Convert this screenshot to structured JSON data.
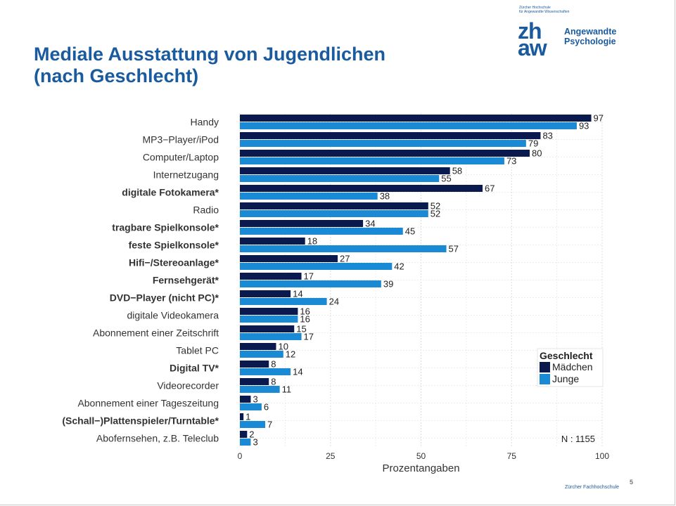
{
  "slide": {
    "title_line1": "Mediale Ausstattung von Jugendlichen",
    "title_line2": "(nach Geschlecht)",
    "logo_small_line1": "Zürcher Hochschule",
    "logo_small_line2": "für Angewandte Wissenschaften",
    "logo_mark_top": "zh",
    "logo_mark_bottom": "aw",
    "logo_text_line1": "Angewandte",
    "logo_text_line2": "Psychologie",
    "footer": "Zürcher Fachhochschule",
    "page_number": "5"
  },
  "colors": {
    "maedchen": "#0a1a4e",
    "junge": "#1a8ad4",
    "grid": "#dedede",
    "label": "#333333"
  },
  "chart_data": {
    "type": "bar",
    "orientation": "horizontal",
    "categories": [
      "Handy",
      "MP3−Player/iPod",
      "Computer/Laptop",
      "Internetzugang",
      "digitale Fotokamera*",
      "Radio",
      "tragbare Spielkonsole*",
      "feste Spielkonsole*",
      "Hifi−/Stereoanlage*",
      "Fernsehgerät*",
      "DVD−Player (nicht PC)*",
      "digitale Videokamera",
      "Abonnement einer Zeitschrift",
      "Tablet PC",
      "Digital TV*",
      "Videorecorder",
      "Abonnement einer Tageszeitung",
      "(Schall−)Plattenspieler/Turntable*",
      "Abofernsehen, z.B. Teleclub"
    ],
    "bold_categories": [
      false,
      false,
      false,
      false,
      true,
      false,
      true,
      true,
      true,
      true,
      true,
      false,
      false,
      false,
      true,
      false,
      false,
      true,
      false
    ],
    "series": [
      {
        "name": "Mädchen",
        "values": [
          97,
          83,
          80,
          58,
          67,
          52,
          34,
          18,
          27,
          17,
          14,
          16,
          15,
          10,
          8,
          8,
          3,
          1,
          2
        ]
      },
      {
        "name": "Junge",
        "values": [
          93,
          79,
          73,
          55,
          38,
          52,
          45,
          57,
          42,
          39,
          24,
          16,
          17,
          12,
          14,
          11,
          6,
          7,
          3
        ]
      }
    ],
    "xlabel": "Prozentangaben",
    "xlim": [
      0,
      100
    ],
    "xticks": [
      0,
      25,
      50,
      75,
      100
    ],
    "legend_title": "Geschlecht",
    "legend_position": "right",
    "annotation": "N : 1155",
    "grid": true
  }
}
